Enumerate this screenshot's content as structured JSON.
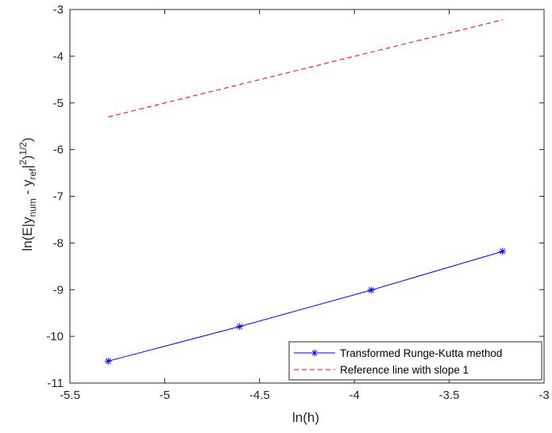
{
  "chart_data": {
    "type": "line",
    "title": "",
    "xlabel": "ln(h)",
    "ylabel": {
      "prefix": "ln(E|y",
      "sub1": "num",
      "mid": " - y",
      "sub2": "ref",
      "after": "|",
      "sup1": "2",
      "close": ")",
      "sup2": "1/2",
      "end": ")"
    },
    "xlim": [
      -5.5,
      -3
    ],
    "ylim": [
      -11,
      -3
    ],
    "xticks": [
      -5.5,
      -5,
      -4.5,
      -4,
      -3.5,
      -3
    ],
    "yticks": [
      -11,
      -10,
      -9,
      -8,
      -7,
      -6,
      -5,
      -4,
      -3
    ],
    "xtick_labels": [
      "-5.5",
      "-5",
      "-4.5",
      "-4",
      "-3.5",
      "-3"
    ],
    "ytick_labels": [
      "-11",
      "-10",
      "-9",
      "-8",
      "-7",
      "-6",
      "-5",
      "-4",
      "-3"
    ],
    "grid": false,
    "legend_position": "bottom-right",
    "series": [
      {
        "name": "Transformed Runge-Kutta method",
        "color": "#0000ff",
        "line_style": "solid",
        "marker": "asterisk",
        "x": [
          -5.298,
          -4.605,
          -3.912,
          -3.219
        ],
        "y": [
          -10.53,
          -9.79,
          -9.01,
          -8.18
        ]
      },
      {
        "name": "Reference line with slope 1",
        "color": "#ff0000",
        "line_style": "dashed",
        "marker": "none",
        "x": [
          -5.298,
          -3.219
        ],
        "y": [
          -5.3,
          -3.22
        ]
      }
    ]
  }
}
